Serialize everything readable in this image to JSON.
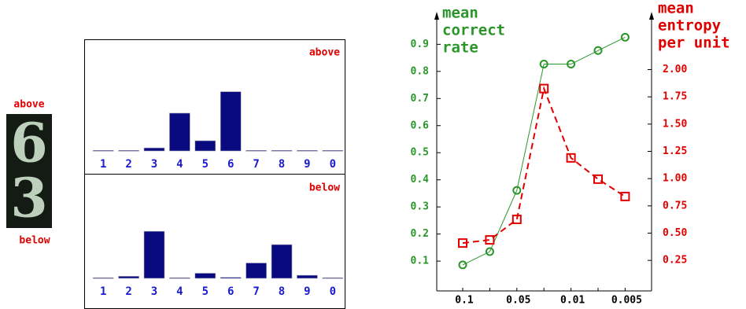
{
  "figure": {
    "digits": [
      "6",
      "3"
    ],
    "above_label": "above",
    "below_label": "below"
  },
  "chart_data": [
    {
      "type": "bar",
      "title": "above",
      "categories": [
        "1",
        "2",
        "3",
        "4",
        "5",
        "6",
        "7",
        "8",
        "9",
        "0"
      ],
      "values": [
        0.005,
        0.005,
        0.03,
        0.37,
        0.1,
        0.58,
        0.005,
        0.005,
        0.005,
        0.005
      ],
      "color": "#0a0a80",
      "ylim": [
        0,
        1
      ]
    },
    {
      "type": "bar",
      "title": "below",
      "categories": [
        "1",
        "2",
        "3",
        "4",
        "5",
        "6",
        "7",
        "8",
        "9",
        "0"
      ],
      "values": [
        0.005,
        0.02,
        0.46,
        0.005,
        0.05,
        0.01,
        0.15,
        0.33,
        0.03,
        0.005
      ],
      "color": "#0a0a80",
      "ylim": [
        0,
        1
      ]
    },
    {
      "type": "line",
      "categories": [
        "0.1",
        null,
        "0.05",
        null,
        "0.01",
        null,
        "0.005"
      ],
      "ylabel": [
        "mean",
        "correct",
        "rate"
      ],
      "y2label": [
        "mean",
        "entropy",
        "per unit"
      ],
      "ylim": [
        -0.01,
        1.02
      ],
      "yticks": [
        0.1,
        0.2,
        0.3,
        0.4,
        0.5,
        0.6,
        0.7,
        0.8,
        0.9
      ],
      "y2lim": [
        -0.03,
        2.53
      ],
      "y2ticks": [
        0.25,
        {
          "value": 0.5,
          "label": "0.50"
        },
        0.75,
        {
          "value": 1,
          "label": "1.00"
        },
        1.25,
        {
          "value": 1.5,
          "label": "1.50"
        },
        1.75,
        {
          "value": 2,
          "label": "2.00"
        }
      ],
      "ycolor": "#2a962a",
      "y2color": "#e00000",
      "series": [
        {
          "color": "#2a962a",
          "marker": "circle",
          "line_style": "solid",
          "values": [
            0.086,
            0.135,
            0.361,
            0.827,
            0.827,
            0.877,
            0.926
          ]
        },
        {
          "color": "#e00000",
          "marker": "square",
          "line_style": "dashed",
          "axis": "y2",
          "values": [
            0.409,
            0.438,
            0.626,
            1.826,
            1.19,
            0.995,
            0.836
          ]
        }
      ]
    }
  ]
}
